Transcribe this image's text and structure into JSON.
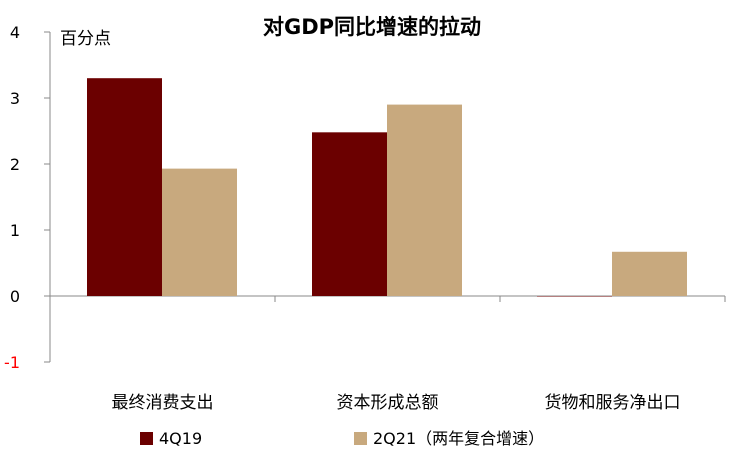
{
  "chart_data": {
    "type": "bar",
    "title": "对GDP同比增速的拉动",
    "ylabel": "百分点",
    "categories": [
      "最终消费支出",
      "资本形成总额",
      "货物和服务净出口"
    ],
    "series": [
      {
        "name": "4Q19",
        "values": [
          3.3,
          2.48,
          0.0
        ],
        "color": "#6b0000"
      },
      {
        "name": "2Q21（两年复合增速）",
        "values": [
          1.93,
          2.9,
          0.67
        ],
        "color": "#c8a97e"
      }
    ],
    "ylim": [
      -1,
      4
    ],
    "yticks": [
      "4",
      "3",
      "2",
      "1",
      "0",
      "-1"
    ],
    "negative_tick_color": "#ff0000",
    "legend_position": "bottom"
  }
}
